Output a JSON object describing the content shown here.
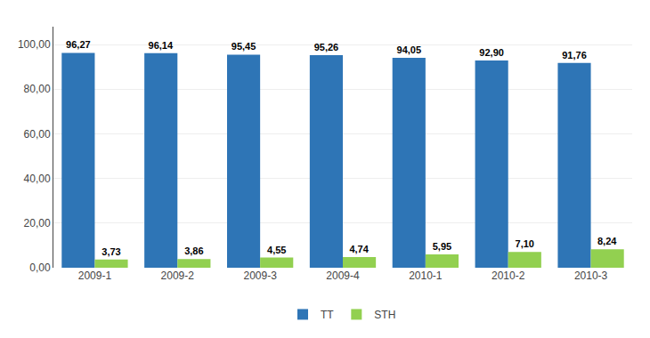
{
  "chart_data": {
    "type": "bar",
    "categories": [
      "2009-1",
      "2009-2",
      "2009-3",
      "2009-4",
      "2010-1",
      "2010-2",
      "2010-3"
    ],
    "series": [
      {
        "name": "TT",
        "color": "#2E75B6",
        "values": [
          96.27,
          96.14,
          95.45,
          95.26,
          94.05,
          92.9,
          91.76
        ],
        "value_labels": [
          "96,27",
          "96,14",
          "95,45",
          "95,26",
          "94,05",
          "92,90",
          "91,76"
        ]
      },
      {
        "name": "STH",
        "color": "#92D050",
        "values": [
          3.73,
          3.86,
          4.55,
          4.74,
          5.95,
          7.1,
          8.24
        ],
        "value_labels": [
          "3,73",
          "3,86",
          "4,55",
          "4,74",
          "5,95",
          "7,10",
          "8,24"
        ]
      }
    ],
    "ylim": [
      0,
      108
    ],
    "yticks": [
      {
        "value": 0,
        "label": "0,00"
      },
      {
        "value": 20,
        "label": "20,00"
      },
      {
        "value": 40,
        "label": "40,00"
      },
      {
        "value": 60,
        "label": "60,00"
      },
      {
        "value": 80,
        "label": "80,00"
      },
      {
        "value": 100,
        "label": "100,00"
      }
    ],
    "grid": true,
    "legend": "bottom",
    "data_labels": true
  }
}
